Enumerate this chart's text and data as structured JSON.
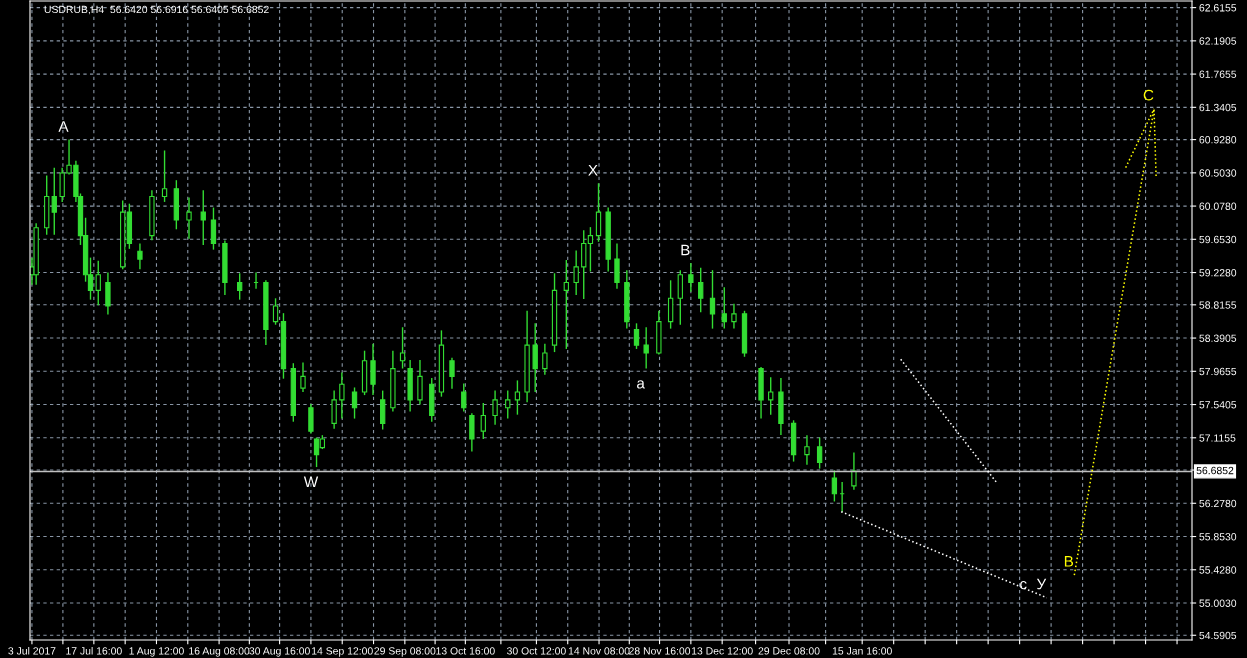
{
  "chart_data": {
    "type": "candlestick",
    "title": "USDRUB,H4  56.6420 56.6916 56.6405 56.6852",
    "series": [
      {
        "color": "#33dd33",
        "x": [
          "2017-07-03",
          "2017-07-04",
          "2017-07-06T12:00",
          "2017-07-08T07:00",
          "2017-07-10T04:00",
          "2017-07-11T19:00",
          "2017-07-13T10:00",
          "2017-07-14T12:00",
          "2017-07-15T17:00",
          "2017-07-16T21:00",
          "2017-07-18T17:00",
          "2017-07-21",
          "2017-07-24T12:00",
          "2017-07-26T02:00",
          "2017-07-28T14:00",
          "2017-07-31T10:00",
          "2017-08-03T10:00",
          "2017-08-06T05:00",
          "2017-08-09T05:00",
          "2017-08-12T14:00",
          "2017-08-15",
          "2017-08-17T17:00",
          "2017-08-21T05:00",
          "2017-08-25T02:00",
          "2017-08-27T10:00",
          "2017-08-29T17:00",
          "2017-08-31T14:00",
          "2017-09-02T22:00",
          "2017-09-05T05:00",
          "2017-09-07T02:00",
          "2017-09-08T10:00",
          "2017-09-09T19:00",
          "2017-09-12T14:00",
          "2017-09-14T10:00",
          "2017-09-17T10:00",
          "2017-09-19T19:00",
          "2017-09-21T19:00",
          "2017-09-24T02:00",
          "2017-09-26T12:00",
          "2017-09-28T19:00",
          "2017-09-30T14:00",
          "2017-10-02T22:00",
          "2017-10-05T17:00",
          "2017-10-08",
          "2017-10-10T12:00",
          "2017-10-13T07:00",
          "2017-10-15T05:00",
          "2017-10-17T22:00",
          "2017-10-20T17:00",
          "2017-10-23T17:00",
          "2017-10-26",
          "2017-10-28T07:00",
          "2017-10-30T05:00",
          "2017-11-01T12:00",
          "2017-11-03T19:00",
          "2017-11-06T14:00",
          "2017-11-08T22:00",
          "2017-11-10T17:00",
          "2017-11-12T07:00",
          "2017-11-14T05:00",
          "2017-11-16T12:00",
          "2017-11-18T14:00",
          "2017-11-20T22:00",
          "2017-11-23T05:00",
          "2017-11-25T12:00",
          "2017-11-28T12:00",
          "2017-12-01T07:00",
          "2017-12-03T14:00",
          "2017-12-06T02:00",
          "2017-12-08T10:00",
          "2017-12-11T05:00",
          "2017-12-14",
          "2017-12-16T07:00",
          "2017-12-18T19:00",
          "2017-12-22T17:00",
          "2017-12-25",
          "2017-12-27T10:00",
          "2017-12-30T10:00",
          "2018-01-02T14:00",
          "2018-01-05T14:00",
          "2018-01-09T02:00",
          "2018-01-10T22:00",
          "2018-01-13T17:00"
        ],
        "ohlc": [
          [
            59.2,
            59.41,
            59.08,
            59.3
          ],
          [
            59.2,
            59.85,
            59.08,
            59.8
          ],
          [
            59.8,
            60.46,
            59.72,
            60.2
          ],
          [
            60.2,
            60.56,
            59.72,
            60.0
          ],
          [
            60.2,
            60.56,
            60.14,
            60.5
          ],
          [
            60.5,
            60.92,
            60.49,
            60.6
          ],
          [
            60.6,
            60.65,
            60.14,
            60.2
          ],
          [
            60.2,
            60.23,
            59.59,
            59.7
          ],
          [
            59.7,
            59.92,
            59.12,
            59.2
          ],
          [
            59.2,
            59.41,
            58.89,
            59.0
          ],
          [
            59.0,
            59.37,
            58.82,
            59.2
          ],
          [
            59.1,
            59.22,
            58.7,
            58.8
          ],
          [
            59.3,
            60.14,
            59.28,
            60.0
          ],
          [
            60.0,
            60.1,
            59.54,
            59.6
          ],
          [
            59.5,
            59.59,
            59.28,
            59.4
          ],
          [
            59.7,
            60.27,
            59.65,
            60.2
          ],
          [
            60.2,
            60.78,
            60.14,
            60.3
          ],
          [
            60.3,
            60.4,
            59.79,
            59.9
          ],
          [
            59.9,
            60.18,
            59.67,
            60.0
          ],
          [
            60.0,
            60.27,
            59.59,
            59.9
          ],
          [
            59.9,
            60.05,
            59.53,
            59.6
          ],
          [
            59.6,
            59.63,
            58.95,
            59.1
          ],
          [
            59.1,
            59.21,
            58.89,
            59.0
          ],
          [
            59.1,
            59.22,
            59.03,
            59.1
          ],
          [
            59.1,
            59.12,
            58.31,
            58.5
          ],
          [
            58.6,
            58.89,
            58.57,
            58.8
          ],
          [
            58.6,
            58.7,
            57.88,
            58.0
          ],
          [
            58.0,
            58.06,
            57.33,
            57.4
          ],
          [
            57.75,
            58.07,
            57.71,
            57.9
          ],
          [
            57.5,
            57.54,
            57.18,
            57.2
          ],
          [
            57.1,
            57.11,
            56.75,
            56.9
          ],
          [
            56.99,
            57.14,
            56.98,
            57.1
          ],
          [
            57.3,
            57.71,
            57.24,
            57.6
          ],
          [
            57.6,
            57.94,
            57.37,
            57.8
          ],
          [
            57.7,
            57.75,
            57.37,
            57.5
          ],
          [
            57.7,
            58.22,
            57.67,
            58.1
          ],
          [
            58.1,
            58.31,
            57.67,
            57.8
          ],
          [
            57.6,
            57.71,
            57.23,
            57.3
          ],
          [
            57.5,
            58.22,
            57.46,
            58.0
          ],
          [
            58.1,
            58.52,
            58.01,
            58.2
          ],
          [
            58.0,
            58.1,
            57.46,
            57.6
          ],
          [
            57.6,
            58.1,
            57.55,
            57.9
          ],
          [
            57.8,
            57.87,
            57.33,
            57.4
          ],
          [
            57.7,
            58.48,
            57.65,
            58.3
          ],
          [
            58.1,
            58.13,
            57.75,
            57.9
          ],
          [
            57.7,
            57.8,
            57.46,
            57.5
          ],
          [
            57.4,
            57.42,
            56.95,
            57.1
          ],
          [
            57.2,
            57.55,
            57.11,
            57.4
          ],
          [
            57.4,
            57.71,
            57.29,
            57.6
          ],
          [
            57.5,
            57.71,
            57.37,
            57.6
          ],
          [
            57.6,
            57.84,
            57.42,
            57.7
          ],
          [
            57.7,
            58.73,
            57.58,
            58.3
          ],
          [
            58.3,
            58.57,
            57.71,
            58.0
          ],
          [
            58.0,
            58.31,
            57.93,
            58.2
          ],
          [
            58.3,
            59.21,
            58.22,
            59.0
          ],
          [
            59.0,
            59.38,
            58.26,
            59.1
          ],
          [
            59.1,
            59.5,
            58.95,
            59.3
          ],
          [
            59.3,
            59.76,
            58.9,
            59.6
          ],
          [
            59.6,
            59.8,
            59.25,
            59.7
          ],
          [
            59.7,
            60.36,
            59.63,
            60.0
          ],
          [
            60.0,
            60.05,
            59.25,
            59.4
          ],
          [
            59.4,
            59.59,
            59.03,
            59.1
          ],
          [
            59.1,
            59.25,
            58.52,
            58.6
          ],
          [
            58.5,
            58.57,
            58.26,
            58.3
          ],
          [
            58.3,
            58.52,
            58.01,
            58.2
          ],
          [
            58.2,
            58.73,
            58.19,
            58.6
          ],
          [
            58.6,
            59.12,
            58.52,
            58.9
          ],
          [
            58.9,
            59.25,
            58.57,
            59.2
          ],
          [
            59.2,
            59.34,
            58.99,
            59.1
          ],
          [
            59.1,
            59.28,
            58.73,
            58.9
          ],
          [
            58.9,
            59.25,
            58.52,
            58.7
          ],
          [
            58.7,
            59.03,
            58.52,
            58.6
          ],
          [
            58.6,
            58.82,
            58.52,
            58.7
          ],
          [
            58.7,
            58.73,
            58.16,
            58.2
          ],
          [
            58.0,
            58.01,
            57.37,
            57.6
          ],
          [
            57.6,
            57.88,
            57.42,
            57.7
          ],
          [
            57.7,
            57.87,
            57.16,
            57.3
          ],
          [
            57.3,
            57.33,
            56.82,
            56.9
          ],
          [
            56.9,
            57.14,
            56.78,
            57.0
          ],
          [
            57.0,
            57.11,
            56.73,
            56.8
          ],
          [
            56.6,
            56.69,
            56.31,
            56.4
          ],
          [
            56.4,
            56.54,
            56.18,
            56.4
          ],
          [
            56.5,
            56.92,
            56.46,
            56.69
          ]
        ]
      },
      {
        "type": "line",
        "color": "#ffffff",
        "line_style": "dotted",
        "x": [
          "2018-01-10T17:00",
          "2018-02-28T10:00"
        ],
        "values": [
          56.17,
          55.07
        ]
      },
      {
        "type": "line",
        "color": "#ffffff",
        "line_style": "dotted",
        "x": [
          "2018-01-24T19:00",
          "2018-02-16T10:00"
        ],
        "values": [
          58.12,
          56.55
        ]
      },
      {
        "type": "line",
        "color": "#ffff00",
        "line_style": "dotted",
        "x": [
          "2018-03-06T22:00",
          "2018-03-25T19:00",
          "2018-03-26T07:00"
        ],
        "values": [
          55.36,
          61.32,
          60.45
        ]
      },
      {
        "type": "line",
        "color": "#ffff00",
        "line_style": "dotted",
        "x": [
          "2018-03-19T02:00",
          "2018-03-25T19:00"
        ],
        "values": [
          60.57,
          61.32
        ]
      }
    ],
    "marker": "none",
    "xlim": [
      "2017-07-02T13:00",
      "2018-04-03T19:00"
    ],
    "xticks": [
      {
        "value": "2017-07-03",
        "label": "3 Jul 2017"
      },
      {
        "value": "2017-07-10T08:00",
        "label": null
      },
      {
        "value": "2017-07-17T16:00",
        "label": "17 Jul 16:00"
      },
      {
        "value": "2017-07-25T02:00",
        "label": null
      },
      {
        "value": "2017-08-01T12:00",
        "label": "1 Aug 12:00"
      },
      {
        "value": "2017-08-08T22:00",
        "label": null
      },
      {
        "value": "2017-08-16T08:00",
        "label": "16 Aug 08:00"
      },
      {
        "value": "2017-08-23T12:00",
        "label": null
      },
      {
        "value": "2017-08-30T16:00",
        "label": "30 Aug 16:00"
      },
      {
        "value": "2017-09-07T02:00",
        "label": null
      },
      {
        "value": "2017-09-14T12:00",
        "label": "14 Sep 12:00"
      },
      {
        "value": "2017-09-21T22:00",
        "label": null
      },
      {
        "value": "2017-09-29T08:00",
        "label": "29 Sep 08:00"
      },
      {
        "value": "2017-10-06T12:00",
        "label": null
      },
      {
        "value": "2017-10-13T16:00",
        "label": "13 Oct 16:00"
      },
      {
        "value": "2017-10-22T02:00",
        "label": null
      },
      {
        "value": "2017-10-30T12:00",
        "label": "30 Oct 12:00"
      },
      {
        "value": "2017-11-06T22:00",
        "label": null
      },
      {
        "value": "2017-11-14T08:00",
        "label": "14 Nov 08:00"
      },
      {
        "value": "2017-11-21T12:00",
        "label": null
      },
      {
        "value": "2017-11-28T16:00",
        "label": "28 Nov 16:00"
      },
      {
        "value": "2017-12-06T02:00",
        "label": null
      },
      {
        "value": "2017-12-13T12:00",
        "label": "13 Dec 12:00"
      },
      {
        "value": "2017-12-21T10:00",
        "label": null
      },
      {
        "value": "2017-12-29T08:00",
        "label": "29 Dec 08:00"
      },
      {
        "value": "2018-01-07",
        "label": null
      },
      {
        "value": "2018-01-15T16:00",
        "label": "15 Jan 16:00"
      },
      {
        "value": "2018-01-23T03:00",
        "label": null
      },
      {
        "value": "2018-01-30T14:00",
        "label": null
      },
      {
        "value": "2018-02-07T01:00",
        "label": null
      },
      {
        "value": "2018-02-14T12:00",
        "label": null
      },
      {
        "value": "2018-02-21T23:00",
        "label": null
      },
      {
        "value": "2018-03-01T10:00",
        "label": null
      },
      {
        "value": "2018-03-08T21:00",
        "label": null
      },
      {
        "value": "2018-03-16T08:00",
        "label": null
      },
      {
        "value": "2018-03-23T19:00",
        "label": null
      },
      {
        "value": "2018-03-31T06:00",
        "label": null
      }
    ],
    "ylim": [
      54.53,
      62.7
    ],
    "yticks": [
      {
        "value": 54.5905,
        "label": "54.5905"
      },
      {
        "value": 55.003,
        "label": "55.0030"
      },
      {
        "value": 55.428,
        "label": "55.4280"
      },
      {
        "value": 55.853,
        "label": "55.8530"
      },
      {
        "value": 56.278,
        "label": "56.2780"
      },
      {
        "value": 56.703,
        "label": null
      },
      {
        "value": 57.1155,
        "label": "57.1155"
      },
      {
        "value": 57.5405,
        "label": "57.5405"
      },
      {
        "value": 57.9655,
        "label": "57.9655"
      },
      {
        "value": 58.3905,
        "label": "58.3905"
      },
      {
        "value": 58.8155,
        "label": "58.8155"
      },
      {
        "value": 59.228,
        "label": "59.2280"
      },
      {
        "value": 59.653,
        "label": "59.6530"
      },
      {
        "value": 60.078,
        "label": "60.0780"
      },
      {
        "value": 60.503,
        "label": "60.5030"
      },
      {
        "value": 60.928,
        "label": "60.9280"
      },
      {
        "value": 61.3405,
        "label": "61.3405"
      },
      {
        "value": 61.7655,
        "label": "61.7655"
      },
      {
        "value": 62.1905,
        "label": "62.1905"
      },
      {
        "value": 62.6155,
        "label": "62.6155"
      }
    ],
    "grid": true,
    "ref_lines": [
      {
        "axis": "y",
        "value": 56.6852,
        "label": "56.6852",
        "color": "#c0c0c0"
      }
    ],
    "annotations": [
      {
        "text": "A",
        "x": "2017-07-11T19:00",
        "y": 60.92
      },
      {
        "text": "W",
        "x": "2017-09-08T10:00",
        "y": 56.75
      },
      {
        "text": "X",
        "x": "2017-11-14T05:00",
        "y": 60.36
      },
      {
        "text": "a",
        "x": "2017-11-25T12:00",
        "y": 58.01
      },
      {
        "text": "B",
        "x": "2017-12-06T02:00",
        "y": 59.34
      },
      {
        "text": "c",
        "x": "2018-02-28T10:00",
        "y": 55.07
      },
      {
        "text": "У",
        "x": "2018-02-28T10:00",
        "y": 55.07
      },
      {
        "text": "B",
        "x": "2018-03-06T22:00",
        "y": 55.36
      },
      {
        "text": "C",
        "x": "2018-03-25T19:00",
        "y": 61.32
      }
    ]
  }
}
